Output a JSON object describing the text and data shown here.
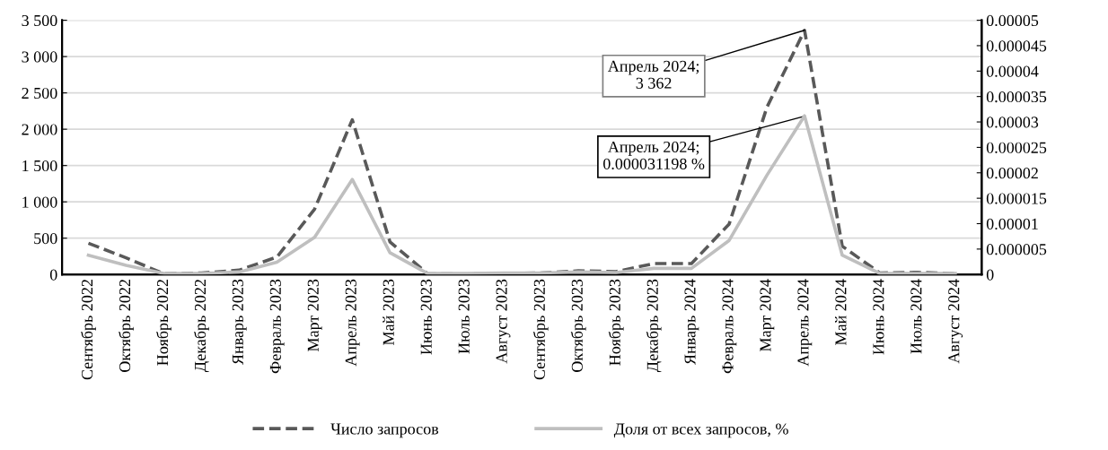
{
  "chart_data": {
    "type": "line",
    "categories": [
      "Сентябрь 2022",
      "Октябрь 2022",
      "Ноябрь 2022",
      "Декабрь 2022",
      "Январь 2023",
      "Февраль 2023",
      "Март 2023",
      "Апрель 2023",
      "Май 2023",
      "Июнь 2023",
      "Июль 2023",
      "Август 2023",
      "Сентябрь 2023",
      "Октябрь 2023",
      "Ноябрь 2023",
      "Декабрь 2023",
      "Январь 2024",
      "Февраль 2024",
      "Март 2024",
      "Апрель 2024",
      "Май 2024",
      "Июнь 2024",
      "Июль 2024",
      "Август 2024"
    ],
    "series": [
      {
        "name": "Число запросов",
        "color": "#595959",
        "line_style": "dashed",
        "values": [
          430,
          230,
          10,
          20,
          60,
          240,
          900,
          2130,
          450,
          10,
          5,
          15,
          20,
          50,
          40,
          150,
          150,
          695,
          2300,
          3362,
          390,
          20,
          30,
          10
        ]
      },
      {
        "name": "Доля от всех запросов, %",
        "color": "#bfbfbf",
        "line_style": "solid",
        "axis": "y2",
        "values": [
          3.8e-06,
          1.8e-06,
          2e-07,
          2e-07,
          5e-07,
          2.4e-06,
          7.3e-06,
          1.87e-05,
          4.3e-06,
          2e-07,
          2e-07,
          3e-07,
          3e-07,
          5e-07,
          4e-07,
          1.2e-06,
          1.2e-06,
          6.7e-06,
          1.95e-05,
          3.1198e-05,
          3.8e-06,
          2e-07,
          2e-07,
          2e-07
        ]
      }
    ],
    "ylim": [
      0,
      3500
    ],
    "yticks": [
      0,
      500,
      {
        "value": 1000,
        "label": "1 000"
      },
      {
        "value": 1500,
        "label": "1 500"
      },
      {
        "value": 2000,
        "label": "2 000"
      },
      {
        "value": 2500,
        "label": "2 500"
      },
      {
        "value": 3000,
        "label": "3 000"
      },
      {
        "value": 3500,
        "label": "3 500"
      }
    ],
    "y2lim": [
      0,
      5e-05
    ],
    "y2ticks": [
      0,
      {
        "value": 5e-06,
        "label": "0.000005"
      },
      {
        "value": 1e-05,
        "label": "0.00001"
      },
      {
        "value": 1.5e-05,
        "label": "0.000015"
      },
      {
        "value": 2e-05,
        "label": "0.00002"
      },
      {
        "value": 2.5e-05,
        "label": "0.000025"
      },
      {
        "value": 3e-05,
        "label": "0.00003"
      },
      {
        "value": 3.5e-05,
        "label": "0.000035"
      },
      {
        "value": 4e-05,
        "label": "0.00004"
      },
      {
        "value": 4.5e-05,
        "label": "0.000045"
      },
      {
        "value": 5e-05,
        "label": "0.00005"
      }
    ],
    "annotations": [
      {
        "text": "Апрель 2024;\n3 362",
        "x": "Апрель 2024",
        "y": 3362
      },
      {
        "text": "Апрель 2024;\n0.000031198 %",
        "x": "Апрель 2024",
        "y": 2180
      }
    ],
    "grid": "y",
    "legend": "bottom",
    "marker": "none"
  }
}
